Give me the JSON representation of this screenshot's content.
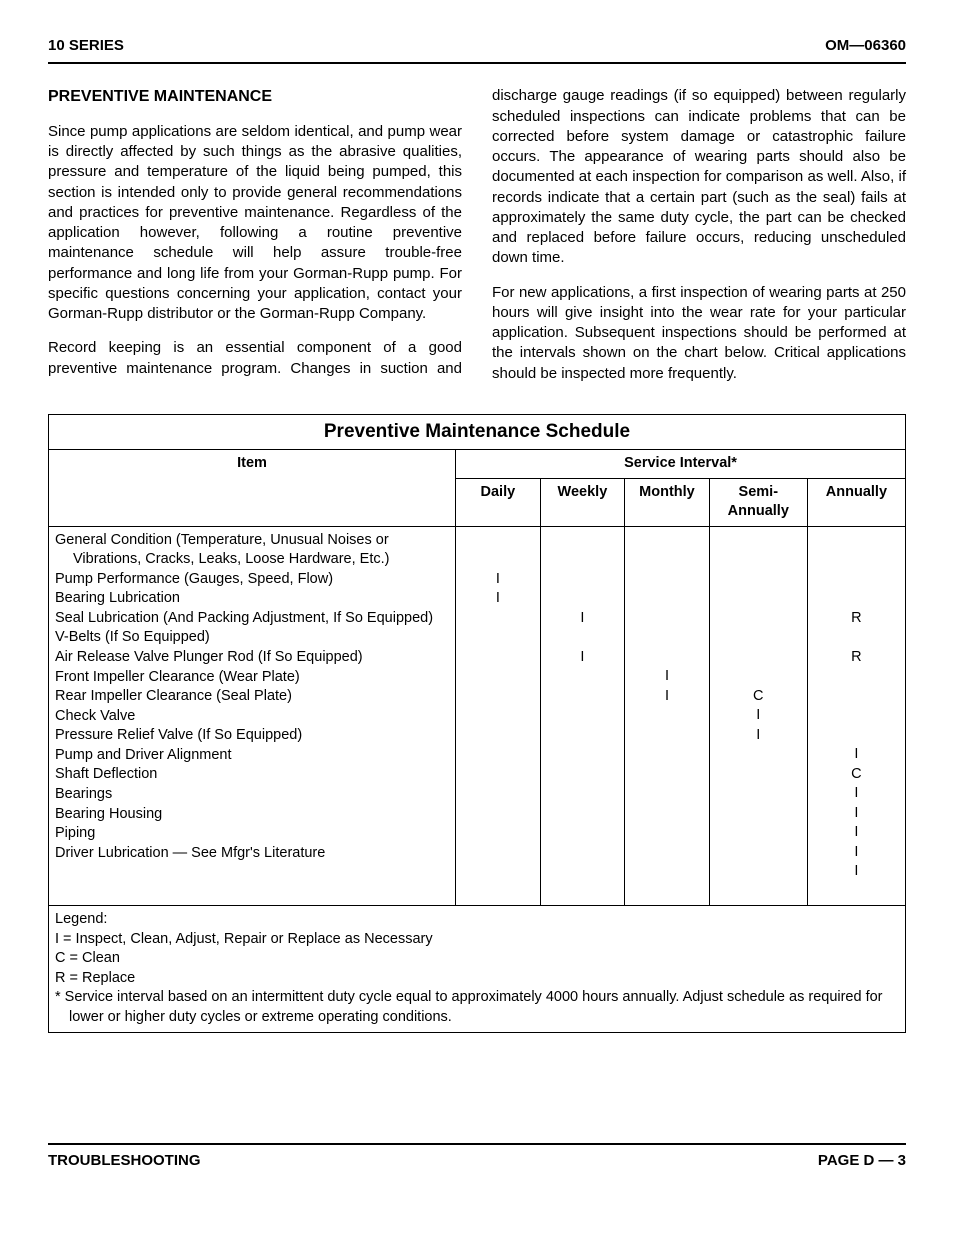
{
  "header": {
    "left": "10 SERIES",
    "right": "OM—06360"
  },
  "section_title": "PREVENTIVE MAINTENANCE",
  "paragraphs": {
    "p1": "Since pump applications are seldom identical, and pump wear is directly affected by such things as the abrasive qualities, pressure and temperature of the liquid being pumped, this section is intended only to provide general recommendations and practices for preventive maintenance. Regardless of the application however, following a routine preventive maintenance schedule will help assure trouble-free performance and long life from your Gorman-Rupp pump. For specific questions concerning your application, contact your Gorman-Rupp distributor or the Gorman-Rupp Company.",
    "p2": "Record keeping is an essential component of a good preventive maintenance program. Changes in suction and discharge gauge readings (if so equipped) between regularly scheduled inspections can indicate problems that can be corrected before system damage or catastrophic failure occurs. The appearance of wearing parts should also be documented at each inspection for comparison as well. Also, if records indicate that a certain part (such as the seal) fails at approximately the same duty cycle, the part can be checked and replaced before failure occurs, reducing unscheduled down time.",
    "p3": "For new applications, a first inspection of wearing parts at 250 hours will give insight into the wear rate for your particular application. Subsequent inspections should be performed at the intervals shown on the chart below. Critical applications should be inspected more frequently."
  },
  "table": {
    "title": "Preventive Maintenance Schedule",
    "item_header": "Item",
    "interval_header": "Service Interval*",
    "columns": [
      "Daily",
      "Weekly",
      "Monthly",
      "Semi-\nAnnually",
      "Annually"
    ],
    "rows": [
      {
        "item": "General Condition (Temperature, Unusual Noises or Vibrations, Cracks, Leaks, Loose Hardware, Etc.)",
        "lines": 3,
        "marks": [
          "I",
          "",
          "",
          "",
          ""
        ],
        "mark_line": 3
      },
      {
        "item": "Pump Performance (Gauges, Speed, Flow)",
        "lines": 1,
        "marks": [
          "I",
          "",
          "",
          "",
          ""
        ],
        "mark_line": 1
      },
      {
        "item": "Bearing Lubrication",
        "lines": 1,
        "marks": [
          "",
          "I",
          "",
          "",
          "R"
        ],
        "mark_line": 1
      },
      {
        "item": "Seal Lubrication (And Packing Adjustment, If So Equipped)",
        "lines": 2,
        "marks": [
          "",
          "I",
          "",
          "",
          "R"
        ],
        "mark_line": 2
      },
      {
        "item": "V-Belts (If So Equipped)",
        "lines": 1,
        "marks": [
          "",
          "",
          "I",
          "",
          ""
        ],
        "mark_line": 1
      },
      {
        "item": "Air Release Valve Plunger Rod (If So Equipped)",
        "lines": 1,
        "marks": [
          "",
          "",
          "I",
          "C",
          ""
        ],
        "mark_line": 1
      },
      {
        "item": "Front Impeller Clearance (Wear Plate)",
        "lines": 1,
        "marks": [
          "",
          "",
          "",
          "I",
          ""
        ],
        "mark_line": 1
      },
      {
        "item": "Rear Impeller Clearance (Seal Plate)",
        "lines": 1,
        "marks": [
          "",
          "",
          "",
          "I",
          ""
        ],
        "mark_line": 1
      },
      {
        "item": "Check Valve",
        "lines": 1,
        "marks": [
          "",
          "",
          "",
          "",
          "I"
        ],
        "mark_line": 1
      },
      {
        "item": "Pressure Relief Valve (If So Equipped)",
        "lines": 1,
        "marks": [
          "",
          "",
          "",
          "",
          "C"
        ],
        "mark_line": 1
      },
      {
        "item": "Pump and Driver Alignment",
        "lines": 1,
        "marks": [
          "",
          "",
          "",
          "",
          "I"
        ],
        "mark_line": 1
      },
      {
        "item": "Shaft Deflection",
        "lines": 1,
        "marks": [
          "",
          "",
          "",
          "",
          "I"
        ],
        "mark_line": 1
      },
      {
        "item": "Bearings",
        "lines": 1,
        "marks": [
          "",
          "",
          "",
          "",
          "I"
        ],
        "mark_line": 1
      },
      {
        "item": "Bearing Housing",
        "lines": 1,
        "marks": [
          "",
          "",
          "",
          "",
          "I"
        ],
        "mark_line": 1
      },
      {
        "item": "Piping",
        "lines": 1,
        "marks": [
          "",
          "",
          "",
          "",
          "I"
        ],
        "mark_line": 1
      },
      {
        "item": "Driver Lubrication — See Mfgr's Literature",
        "lines": 1,
        "marks": [
          "",
          "",
          "",
          "",
          ""
        ],
        "mark_line": 1
      }
    ],
    "legend": {
      "title": "Legend:",
      "l1": "I = Inspect, Clean, Adjust, Repair or Replace as Necessary",
      "l2": "C = Clean",
      "l3": "R = Replace",
      "note": "* Service interval based on an intermittent duty cycle equal to approximately 4000 hours annually. Adjust schedule as required for lower or higher duty cycles or extreme operating conditions."
    }
  },
  "footer": {
    "left": "TROUBLESHOOTING",
    "right": "PAGE D — 3"
  }
}
